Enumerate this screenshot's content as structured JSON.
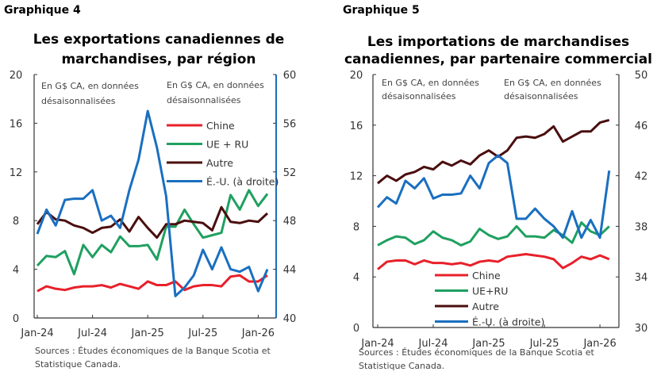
{
  "colors": {
    "chine": "#e8202a",
    "ue": "#1fa060",
    "autre": "#4a0e0e",
    "eu": "#1a6fc0"
  },
  "chart_data": [
    {
      "type": "line",
      "label": "Graphique 4",
      "title": [
        "Les exportations canadiennes de",
        "marchandises, par région"
      ],
      "note_left": [
        "En G$ CA, en données",
        "désaisonnalisées"
      ],
      "note_right": [
        "En G$ CA, en données",
        "désaisonnalisées"
      ],
      "ylim": [
        0,
        20
      ],
      "yticks": [
        0,
        4,
        8,
        12,
        16,
        20
      ],
      "y2lim": [
        40,
        60
      ],
      "y2ticks": [
        40,
        44,
        48,
        52,
        56,
        60
      ],
      "xticks": [
        "Jan-24",
        "Jul-24",
        "Jan-25",
        "Jul-25",
        "Jan-26"
      ],
      "sources": [
        "Sources : Études économiques de la Banque Scotia et",
        "Statistique Canada."
      ],
      "series": [
        {
          "name": "Chine",
          "key": "chine",
          "axis": "left",
          "values": [
            2.2,
            2.6,
            2.4,
            2.3,
            2.5,
            2.6,
            2.6,
            2.7,
            2.5,
            2.8,
            2.6,
            2.4,
            3.0,
            2.7,
            2.7,
            3.0,
            2.3,
            2.6,
            2.7,
            2.7,
            2.6,
            3.4,
            3.5,
            3.0,
            3.0,
            3.5
          ]
        },
        {
          "name": "UE + RU",
          "key": "ue",
          "axis": "left",
          "values": [
            4.3,
            5.1,
            5.0,
            5.5,
            3.6,
            6.0,
            5.0,
            6.0,
            5.4,
            6.7,
            5.9,
            5.9,
            6.0,
            4.8,
            7.5,
            7.5,
            8.9,
            7.7,
            6.6,
            6.8,
            7.0,
            10.1,
            8.9,
            10.5,
            9.2,
            10.2
          ]
        },
        {
          "name": "Autre",
          "key": "autre",
          "axis": "left",
          "values": [
            7.7,
            8.7,
            8.1,
            8.0,
            7.6,
            7.4,
            7.0,
            7.4,
            7.5,
            8.1,
            7.1,
            8.3,
            7.4,
            6.6,
            7.7,
            7.7,
            8.0,
            7.9,
            7.8,
            7.2,
            9.1,
            7.9,
            7.8,
            8.0,
            7.9,
            8.6
          ]
        },
        {
          "name": "É.-U. (à droite)",
          "key": "eu",
          "axis": "right",
          "values": [
            46.9,
            48.9,
            47.6,
            49.7,
            49.8,
            49.8,
            50.5,
            48.0,
            48.4,
            47.4,
            50.5,
            53.0,
            57.0,
            54.0,
            50.0,
            41.8,
            42.5,
            43.5,
            45.6,
            44.0,
            45.8,
            44.0,
            43.8,
            44.2,
            42.2,
            44.0
          ]
        }
      ]
    },
    {
      "type": "line",
      "label": "Graphique 5",
      "title": [
        "Les importations de marchandises",
        "canadiennes, par partenaire commercial"
      ],
      "note_left": [
        "En G$ CA, en données",
        "désaisonnalisées"
      ],
      "note_right": [
        "En G$ CA, en données",
        "désaisonnalisées"
      ],
      "ylim": [
        0,
        20
      ],
      "yticks": [
        0,
        4,
        8,
        12,
        16,
        20
      ],
      "y2lim": [
        30,
        50
      ],
      "y2ticks": [
        30,
        34,
        38,
        42,
        46,
        50
      ],
      "xticks": [
        "Jan-24",
        "Jul-24",
        "Jan-25",
        "Jul-25",
        "Jan-26"
      ],
      "sources": [
        "Sources : Études économiques de la Banque Scotia et",
        "Statistique Canada."
      ],
      "series": [
        {
          "name": "Chine",
          "key": "chine",
          "axis": "left",
          "values": [
            4.6,
            5.2,
            5.3,
            5.3,
            5.0,
            5.3,
            5.1,
            5.1,
            5.0,
            5.1,
            4.9,
            5.2,
            5.3,
            5.2,
            5.6,
            5.7,
            5.8,
            5.7,
            5.6,
            5.4,
            4.7,
            5.1,
            5.6,
            5.4,
            5.7,
            5.4
          ]
        },
        {
          "name": "UE+RU",
          "key": "ue",
          "axis": "left",
          "values": [
            6.5,
            6.9,
            7.2,
            7.1,
            6.6,
            6.9,
            7.6,
            7.1,
            6.9,
            6.5,
            6.8,
            7.8,
            7.3,
            7.0,
            7.2,
            8.0,
            7.2,
            7.2,
            7.1,
            7.7,
            7.3,
            6.7,
            8.3,
            7.6,
            7.3,
            8.0
          ]
        },
        {
          "name": "Autre",
          "key": "autre",
          "axis": "left",
          "values": [
            11.4,
            12.0,
            11.6,
            12.1,
            12.3,
            12.7,
            12.5,
            13.1,
            12.8,
            13.2,
            12.9,
            13.6,
            14.0,
            13.5,
            14.0,
            15.0,
            15.1,
            15.0,
            15.3,
            15.9,
            14.7,
            15.1,
            15.5,
            15.5,
            16.2,
            16.4
          ]
        },
        {
          "name": "É.-U. (à droite)",
          "key": "eu",
          "axis": "right",
          "values": [
            39.5,
            40.3,
            39.8,
            41.6,
            41.0,
            41.8,
            40.2,
            40.5,
            40.5,
            40.6,
            42.0,
            41.0,
            43.0,
            43.6,
            43.0,
            38.6,
            38.6,
            39.4,
            38.6,
            38.0,
            37.1,
            39.2,
            37.1,
            38.5,
            37.1,
            42.4
          ]
        }
      ]
    }
  ]
}
